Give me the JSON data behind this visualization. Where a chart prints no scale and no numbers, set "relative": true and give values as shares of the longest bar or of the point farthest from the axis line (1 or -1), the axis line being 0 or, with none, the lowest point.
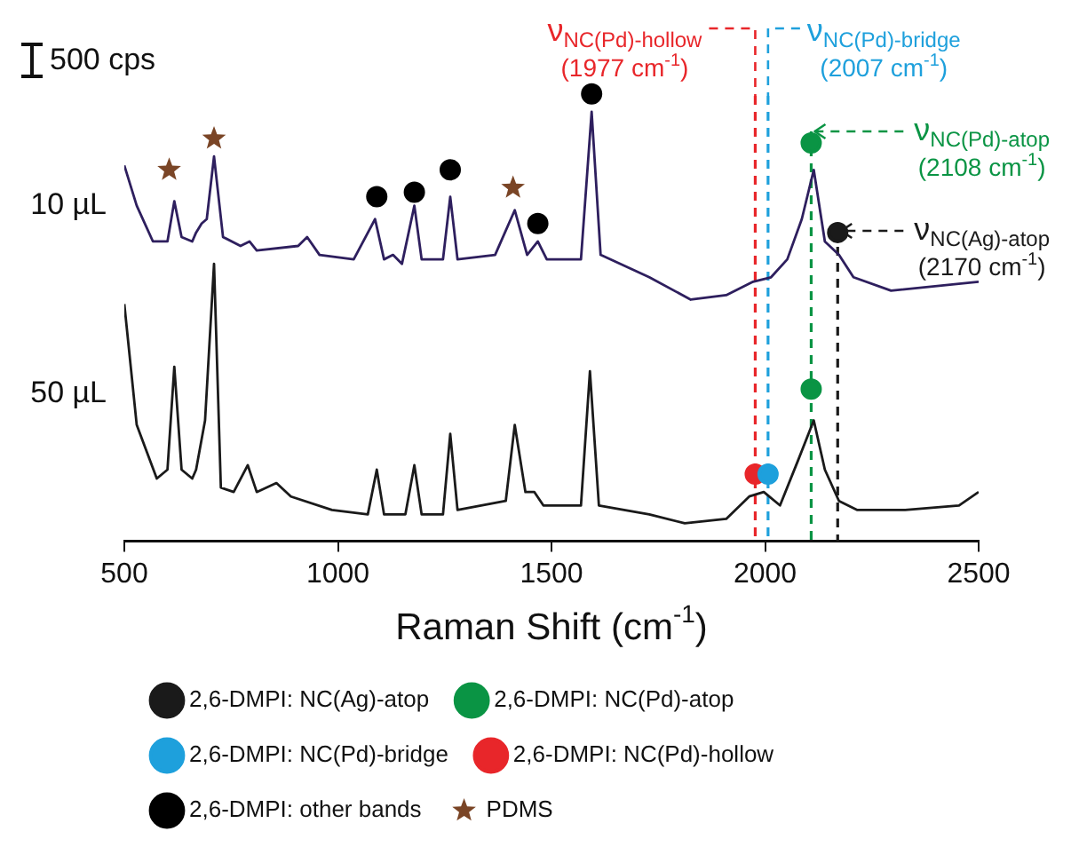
{
  "chart_data": {
    "type": "line",
    "relative": true,
    "xlabel": "Raman Shift (cm$^{-1}$)",
    "xlim": [
      500,
      2500
    ],
    "xticks": [
      500,
      1000,
      1500,
      2000,
      2500
    ],
    "grid": false,
    "legend": "bottom",
    "annotations": [
      "500 cps"
    ],
    "series": [
      {
        "name": "10 µL",
        "type": "line",
        "color": "#2e1f5e",
        "x": [
          500,
          529,
          567,
          601,
          617,
          634,
          659,
          668,
          681,
          693,
          710,
          731,
          772,
          793,
          810,
          907,
          928,
          957,
          1037,
          1087,
          1108,
          1129,
          1150,
          1179,
          1196,
          1246,
          1263,
          1280,
          1368,
          1414,
          1443,
          1468,
          1489,
          1569,
          1594,
          1615,
          1729,
          1826,
          1909,
          1972,
          2014,
          2052,
          2086,
          2114,
          2140,
          2173,
          2207,
          2295,
          2500
        ],
        "values": [
          0.84,
          0.75,
          0.67,
          0.67,
          0.76,
          0.68,
          0.67,
          0.69,
          0.71,
          0.72,
          0.86,
          0.68,
          0.66,
          0.67,
          0.65,
          0.66,
          0.68,
          0.64,
          0.63,
          0.72,
          0.63,
          0.64,
          0.62,
          0.75,
          0.63,
          0.63,
          0.77,
          0.63,
          0.64,
          0.74,
          0.64,
          0.67,
          0.63,
          0.63,
          0.96,
          0.64,
          0.59,
          0.54,
          0.55,
          0.58,
          0.59,
          0.63,
          0.72,
          0.83,
          0.67,
          0.64,
          0.59,
          0.56,
          0.58
        ]
      },
      {
        "name": "50 µL",
        "type": "line",
        "color": "#1a1a1a",
        "x": [
          500,
          529,
          576,
          601,
          617,
          634,
          659,
          668,
          689,
          710,
          726,
          756,
          789,
          810,
          856,
          890,
          986,
          1070,
          1091,
          1108,
          1158,
          1179,
          1196,
          1246,
          1263,
          1280,
          1393,
          1414,
          1439,
          1460,
          1481,
          1569,
          1590,
          1611,
          1729,
          1812,
          1909,
          1963,
          1997,
          2035,
          2077,
          2114,
          2140,
          2173,
          2215,
          2328,
          2454,
          2500
        ],
        "values": [
          0.53,
          0.26,
          0.14,
          0.16,
          0.39,
          0.16,
          0.14,
          0.16,
          0.27,
          0.62,
          0.12,
          0.11,
          0.17,
          0.11,
          0.13,
          0.1,
          0.07,
          0.06,
          0.16,
          0.06,
          0.06,
          0.17,
          0.06,
          0.06,
          0.24,
          0.07,
          0.09,
          0.26,
          0.11,
          0.11,
          0.08,
          0.08,
          0.38,
          0.08,
          0.06,
          0.04,
          0.05,
          0.1,
          0.11,
          0.08,
          0.18,
          0.27,
          0.16,
          0.09,
          0.07,
          0.07,
          0.08,
          0.11
        ]
      },
      {
        "name": "2,6-DMPI: NC(Ag)-atop",
        "type": "scatter",
        "marker": "circle",
        "color": "#1a1a1a",
        "x": [
          2170
        ],
        "values": [
          0.69
        ]
      },
      {
        "name": "2,6-DMPI: NC(Pd)-atop",
        "type": "scatter",
        "marker": "circle",
        "color": "#0a9444",
        "x": [
          2108,
          2108
        ],
        "values": [
          0.89,
          0.34
        ]
      },
      {
        "name": "2,6-DMPI: NC(Pd)-bridge",
        "type": "scatter",
        "marker": "circle",
        "color": "#1ea0dc",
        "x": [
          2007
        ],
        "values": [
          0.15
        ]
      },
      {
        "name": "2,6-DMPI: NC(Pd)-hollow",
        "type": "scatter",
        "marker": "circle",
        "color": "#e8262a",
        "x": [
          1977
        ],
        "values": [
          0.15
        ]
      },
      {
        "name": "2,6-DMPI: other bands",
        "type": "scatter",
        "marker": "circle",
        "color": "#000000",
        "x": [
          1091,
          1179,
          1263,
          1468,
          1594
        ],
        "values": [
          0.77,
          0.78,
          0.83,
          0.71,
          1.0
        ]
      },
      {
        "name": "PDMS",
        "type": "scatter",
        "marker": "star",
        "color": "#7a4526",
        "x": [
          605,
          710,
          1410
        ],
        "values": [
          0.83,
          0.9,
          0.79
        ]
      }
    ],
    "ref_lines": [
      {
        "axis": "x",
        "value": 1977,
        "label": "ν$_{NC(Pd)-hollow}$\n(1977 cm$^{-1}$)",
        "color": "#e8262a",
        "line_style": "dashed"
      },
      {
        "axis": "x",
        "value": 2007,
        "label": "ν$_{NC(Pd)-bridge}$\n(2007 cm$^{-1}$)",
        "color": "#1ea0dc",
        "line_style": "dashed"
      },
      {
        "axis": "x",
        "value": 2108,
        "label": "ν$_{NC(Pd)-atop}$\n(2108 cm$^{-1}$)",
        "color": "#0a9444",
        "line_style": "dashed"
      },
      {
        "axis": "x",
        "value": 2170,
        "label": "ν$_{NC(Ag)-atop}$\n(2170 cm$^{-1}$)",
        "color": "#1a1a1a",
        "line_style": "dashed"
      }
    ]
  }
}
